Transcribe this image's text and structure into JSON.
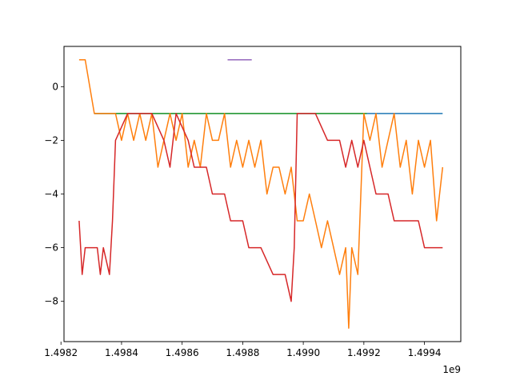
{
  "chart_data": {
    "type": "line",
    "title": "",
    "xlabel": "",
    "ylabel": "",
    "x_offset_label": "1e9",
    "xlim": [
      1.49821,
      1.49952
    ],
    "ylim": [
      -9.5,
      1.5
    ],
    "x_ticks": [
      1.4982,
      1.4984,
      1.4986,
      1.4988,
      1.499,
      1.4992,
      1.4994
    ],
    "x_tick_labels": [
      "1.4982",
      "1.4984",
      "1.4986",
      "1.4988",
      "1.4990",
      "1.4992",
      "1.4994"
    ],
    "y_ticks": [
      0,
      -2,
      -4,
      -6,
      -8
    ],
    "y_tick_labels": [
      "0",
      "−2",
      "−4",
      "−6",
      "−8"
    ],
    "grid": false,
    "legend": "none",
    "series": [
      {
        "color": "#1f77b4",
        "x": [
          1.49831,
          1.49946
        ],
        "y": [
          -1,
          -1
        ]
      },
      {
        "color": "#2ca02c",
        "x": [
          1.49831,
          1.49921
        ],
        "y": [
          -1,
          -1
        ]
      },
      {
        "color": "#9467bd",
        "x": [
          1.49875,
          1.49883
        ],
        "y": [
          1,
          1
        ]
      },
      {
        "color": "#ff7f0e",
        "x": [
          1.49826,
          1.49828,
          1.49831,
          1.49835,
          1.49838,
          1.4984,
          1.49842,
          1.49844,
          1.49846,
          1.49848,
          1.4985,
          1.49852,
          1.49854,
          1.49856,
          1.49858,
          1.4986,
          1.49862,
          1.49864,
          1.49866,
          1.49868,
          1.4987,
          1.49872,
          1.49874,
          1.49876,
          1.49878,
          1.4988,
          1.49882,
          1.49884,
          1.49886,
          1.49888,
          1.4989,
          1.49892,
          1.49894,
          1.49896,
          1.49898,
          1.499,
          1.49902,
          1.49904,
          1.49906,
          1.49908,
          1.4991,
          1.49912,
          1.49914,
          1.49915,
          1.49916,
          1.49918,
          1.4992,
          1.49922,
          1.49924,
          1.49926,
          1.49928,
          1.4993,
          1.49932,
          1.49934,
          1.49936,
          1.49938,
          1.4994,
          1.49942,
          1.49944,
          1.49946
        ],
        "y": [
          1,
          1,
          -1,
          -1,
          -1,
          -2,
          -1,
          -2,
          -1,
          -2,
          -1,
          -3,
          -2,
          -1,
          -2,
          -1,
          -3,
          -2,
          -3,
          -1,
          -2,
          -2,
          -1,
          -3,
          -2,
          -3,
          -2,
          -3,
          -2,
          -4,
          -3,
          -3,
          -4,
          -3,
          -5,
          -5,
          -4,
          -5,
          -6,
          -5,
          -6,
          -7,
          -6,
          -9,
          -6,
          -7,
          -1,
          -2,
          -1,
          -3,
          -2,
          -1,
          -3,
          -2,
          -4,
          -2,
          -3,
          -2,
          -5,
          -3
        ]
      },
      {
        "color": "#d62728",
        "x": [
          1.49826,
          1.49827,
          1.49828,
          1.49832,
          1.49833,
          1.49834,
          1.49836,
          1.49837,
          1.49838,
          1.49842,
          1.49846,
          1.4985,
          1.49854,
          1.49856,
          1.49858,
          1.49862,
          1.49864,
          1.49868,
          1.4987,
          1.49874,
          1.49876,
          1.4988,
          1.49882,
          1.49886,
          1.4989,
          1.49894,
          1.49896,
          1.49897,
          1.49898,
          1.49899,
          1.499,
          1.49904,
          1.49908,
          1.49912,
          1.49914,
          1.49916,
          1.49918,
          1.4992,
          1.49922,
          1.49924,
          1.49928,
          1.4993,
          1.49934,
          1.49938,
          1.4994,
          1.49944,
          1.49946
        ],
        "y": [
          -5,
          -7,
          -6,
          -6,
          -7,
          -6,
          -7,
          -5,
          -2,
          -1,
          -1,
          -1,
          -2,
          -3,
          -1,
          -2,
          -3,
          -3,
          -4,
          -4,
          -5,
          -5,
          -6,
          -6,
          -7,
          -7,
          -8,
          -6,
          -1,
          -1,
          -1,
          -1,
          -2,
          -2,
          -3,
          -2,
          -3,
          -2,
          -3,
          -4,
          -4,
          -5,
          -5,
          -5,
          -6,
          -6,
          -6
        ]
      }
    ]
  }
}
